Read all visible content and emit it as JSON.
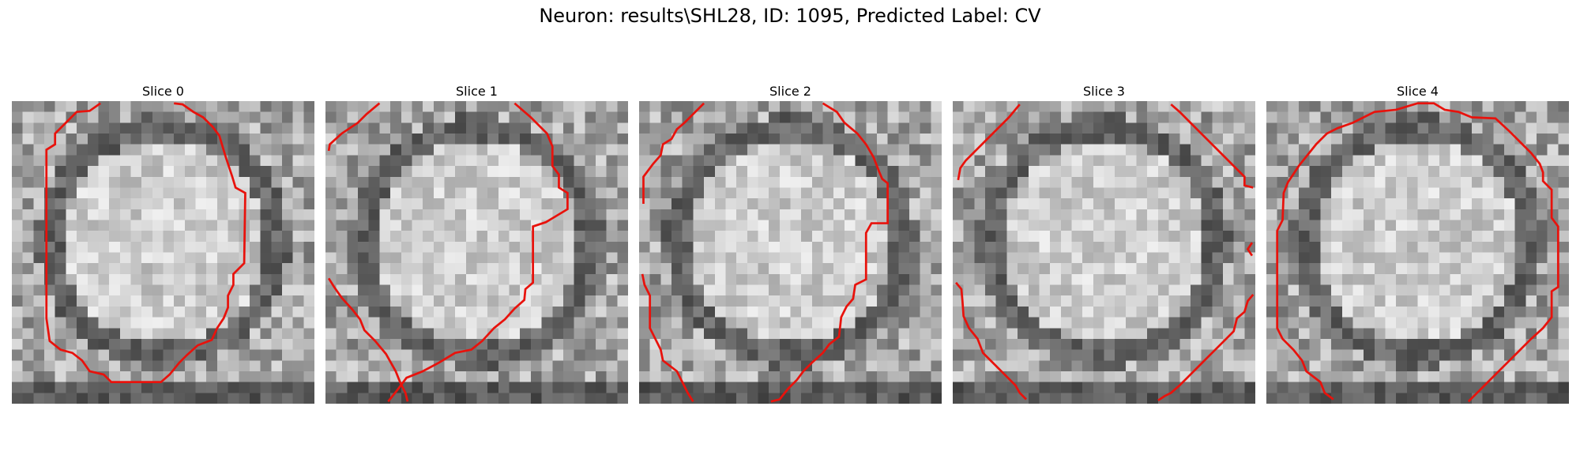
{
  "figure": {
    "title": "Neuron: results\\SHL28, ID: 1095, Predicted Label: CV"
  },
  "panels": [
    {
      "title": "Slice 0",
      "seed": 11,
      "contour": [
        [
          8.2,
          0.2
        ],
        [
          7.2,
          0.9
        ],
        [
          6.0,
          1.0
        ],
        [
          5.0,
          2.0
        ],
        [
          4.0,
          3.0
        ],
        [
          4.0,
          4.0
        ],
        [
          3.2,
          4.5
        ],
        [
          3.2,
          20.1
        ],
        [
          3.5,
          22.2
        ],
        [
          4.5,
          23.0
        ],
        [
          5.6,
          23.3
        ],
        [
          6.5,
          24.0
        ],
        [
          7.2,
          25.0
        ],
        [
          8.5,
          25.3
        ],
        [
          9.2,
          26.0
        ],
        [
          13.8,
          26.0
        ],
        [
          14.6,
          25.3
        ],
        [
          15.5,
          24.2
        ],
        [
          16.2,
          23.5
        ],
        [
          17.2,
          22.6
        ],
        [
          18.5,
          22.1
        ],
        [
          19.0,
          21.0
        ],
        [
          19.6,
          20.1
        ],
        [
          20.0,
          19.1
        ],
        [
          20.0,
          18.0
        ],
        [
          20.5,
          17.0
        ],
        [
          20.5,
          16.0
        ],
        [
          21.5,
          15.0
        ],
        [
          21.6,
          8.5
        ],
        [
          20.7,
          8.0
        ],
        [
          20.4,
          7.0
        ],
        [
          19.8,
          5.2
        ],
        [
          19.2,
          3.2
        ],
        [
          18.6,
          2.4
        ],
        [
          17.7,
          1.5
        ],
        [
          16.8,
          1.0
        ],
        [
          15.8,
          0.3
        ],
        [
          15.0,
          0.2
        ]
      ]
    },
    {
      "title": "Slice 1",
      "seed": 23,
      "contour": [
        [
          5.0,
          0.2
        ],
        [
          3.8,
          1.2
        ],
        [
          3.0,
          2.0
        ],
        [
          1.5,
          3.0
        ],
        [
          0.4,
          4.0
        ],
        [
          0.3,
          4.6
        ]
      ],
      "contour2": [
        [
          17.5,
          0.2
        ],
        [
          19.0,
          1.5
        ],
        [
          20.5,
          3.0
        ],
        [
          21.0,
          4.2
        ],
        [
          21.0,
          6.0
        ],
        [
          21.6,
          6.8
        ],
        [
          21.6,
          8.0
        ],
        [
          22.4,
          8.5
        ],
        [
          22.4,
          10.0
        ],
        [
          21.4,
          10.6
        ],
        [
          20.4,
          11.2
        ],
        [
          19.2,
          11.6
        ],
        [
          19.2,
          16.8
        ],
        [
          18.5,
          17.4
        ],
        [
          18.4,
          18.4
        ],
        [
          17.5,
          19.2
        ],
        [
          16.6,
          20.2
        ],
        [
          15.6,
          21.0
        ],
        [
          14.5,
          22.2
        ],
        [
          13.5,
          23.0
        ],
        [
          12.0,
          23.3
        ],
        [
          10.5,
          24.2
        ],
        [
          9.0,
          25.0
        ],
        [
          7.5,
          25.6
        ],
        [
          6.6,
          26.8
        ],
        [
          5.8,
          27.8
        ]
      ],
      "contour3": [
        [
          0.3,
          16.4
        ],
        [
          0.8,
          17.2
        ],
        [
          1.5,
          18.2
        ],
        [
          2.5,
          19.3
        ],
        [
          3.2,
          20.2
        ],
        [
          3.6,
          21.2
        ],
        [
          4.6,
          22.2
        ],
        [
          5.6,
          23.4
        ],
        [
          6.5,
          25.0
        ],
        [
          6.9,
          26.0
        ],
        [
          7.4,
          27.0
        ],
        [
          7.6,
          27.8
        ]
      ]
    },
    {
      "title": "Slice 2",
      "seed": 37,
      "contour": [
        [
          6.0,
          0.2
        ],
        [
          5.2,
          1.0
        ],
        [
          4.2,
          2.0
        ],
        [
          3.5,
          2.6
        ],
        [
          3.0,
          3.5
        ],
        [
          2.2,
          4.0
        ],
        [
          2.0,
          5.0
        ],
        [
          1.3,
          5.8
        ],
        [
          0.4,
          7.0
        ],
        [
          0.4,
          9.5
        ]
      ],
      "contour2": [
        [
          17.0,
          0.2
        ],
        [
          18.3,
          1.0
        ],
        [
          19.0,
          2.0
        ],
        [
          20.2,
          3.0
        ],
        [
          21.0,
          4.0
        ],
        [
          21.7,
          5.2
        ],
        [
          22.2,
          6.5
        ],
        [
          22.5,
          7.2
        ],
        [
          23.0,
          7.6
        ],
        [
          23.0,
          11.3
        ],
        [
          21.5,
          11.3
        ],
        [
          21.0,
          12.2
        ],
        [
          21.0,
          16.5
        ],
        [
          20.0,
          17.0
        ],
        [
          19.8,
          18.3
        ],
        [
          19.2,
          19.0
        ],
        [
          18.7,
          20.0
        ],
        [
          18.5,
          21.8
        ],
        [
          17.6,
          22.5
        ],
        [
          17.0,
          23.3
        ],
        [
          16.0,
          24.2
        ],
        [
          15.2,
          25.0
        ],
        [
          14.6,
          25.8
        ],
        [
          13.8,
          26.6
        ],
        [
          13.0,
          27.6
        ],
        [
          12.2,
          27.8
        ]
      ],
      "contour3": [
        [
          0.3,
          16.0
        ],
        [
          0.5,
          17.0
        ],
        [
          1.0,
          18.0
        ],
        [
          1.0,
          21.0
        ],
        [
          1.5,
          22.0
        ],
        [
          2.0,
          23.0
        ],
        [
          2.2,
          24.0
        ],
        [
          3.5,
          25.0
        ],
        [
          4.0,
          26.0
        ],
        [
          4.5,
          27.0
        ],
        [
          5.0,
          27.8
        ]
      ]
    },
    {
      "title": "Slice 3",
      "seed": 51,
      "contour": [
        [
          6.2,
          0.3
        ],
        [
          5.2,
          1.5
        ],
        [
          4.2,
          2.5
        ],
        [
          3.2,
          3.5
        ],
        [
          2.2,
          4.5
        ],
        [
          1.2,
          5.5
        ],
        [
          0.7,
          6.2
        ],
        [
          0.5,
          7.3
        ]
      ],
      "contour2": [
        [
          20.2,
          0.3
        ],
        [
          21.0,
          1.0
        ],
        [
          22.0,
          2.0
        ],
        [
          23.0,
          3.0
        ],
        [
          24.0,
          4.0
        ],
        [
          25.0,
          5.0
        ],
        [
          26.0,
          6.0
        ],
        [
          27.0,
          7.0
        ],
        [
          27.0,
          7.8
        ],
        [
          27.8,
          8.0
        ]
      ],
      "contour3": [
        [
          27.7,
          13.1
        ],
        [
          27.3,
          13.7
        ],
        [
          27.7,
          14.3
        ]
      ],
      "contour4": [
        [
          0.3,
          16.8
        ],
        [
          0.8,
          17.4
        ],
        [
          0.9,
          18.5
        ],
        [
          1.0,
          19.9
        ],
        [
          1.5,
          21.0
        ],
        [
          2.3,
          22.0
        ],
        [
          2.8,
          23.3
        ],
        [
          3.8,
          24.3
        ],
        [
          4.8,
          25.3
        ],
        [
          5.8,
          26.3
        ],
        [
          6.2,
          27.0
        ],
        [
          6.8,
          27.6
        ]
      ],
      "contour5": [
        [
          27.8,
          17.9
        ],
        [
          27.3,
          18.5
        ],
        [
          27.0,
          19.5
        ],
        [
          26.3,
          20.1
        ],
        [
          26.0,
          21.3
        ],
        [
          25.0,
          22.3
        ],
        [
          24.0,
          23.3
        ],
        [
          23.0,
          24.3
        ],
        [
          22.0,
          25.3
        ],
        [
          21.0,
          26.3
        ],
        [
          20.2,
          27.0
        ],
        [
          19.6,
          27.3
        ],
        [
          19.0,
          27.7
        ]
      ]
    },
    {
      "title": "Slice 4",
      "seed": 67,
      "contour": [
        [
          6.2,
          27.6
        ],
        [
          5.4,
          27.0
        ],
        [
          5.0,
          26.0
        ],
        [
          3.7,
          25.0
        ],
        [
          3.3,
          24.0
        ],
        [
          2.5,
          23.0
        ],
        [
          1.5,
          22.0
        ],
        [
          1.0,
          21.0
        ],
        [
          1.0,
          12.0
        ],
        [
          1.5,
          11.0
        ],
        [
          1.6,
          8.5
        ],
        [
          2.0,
          7.5
        ],
        [
          3.0,
          6.0
        ],
        [
          3.8,
          5.0
        ],
        [
          4.6,
          4.0
        ],
        [
          5.6,
          3.0
        ],
        [
          6.6,
          2.5
        ],
        [
          8.0,
          2.0
        ],
        [
          9.0,
          1.5
        ],
        [
          10.0,
          1.0
        ],
        [
          12.0,
          0.8
        ],
        [
          13.0,
          0.5
        ],
        [
          14.0,
          0.2
        ],
        [
          15.5,
          0.2
        ],
        [
          16.5,
          0.8
        ],
        [
          17.8,
          1.0
        ],
        [
          19.0,
          1.5
        ],
        [
          21.2,
          1.6
        ],
        [
          22.5,
          2.8
        ],
        [
          23.5,
          3.8
        ],
        [
          24.5,
          4.8
        ],
        [
          25.3,
          5.8
        ],
        [
          25.6,
          6.6
        ],
        [
          25.6,
          7.4
        ],
        [
          26.4,
          8.2
        ],
        [
          26.4,
          10.8
        ],
        [
          27.0,
          11.6
        ],
        [
          27.0,
          17.2
        ],
        [
          26.4,
          17.6
        ],
        [
          26.4,
          20.0
        ],
        [
          25.6,
          21.0
        ],
        [
          24.5,
          22.0
        ],
        [
          23.5,
          23.0
        ],
        [
          22.5,
          24.0
        ],
        [
          21.5,
          25.0
        ],
        [
          20.5,
          26.0
        ],
        [
          19.5,
          27.0
        ],
        [
          18.7,
          27.8
        ]
      ]
    }
  ]
}
